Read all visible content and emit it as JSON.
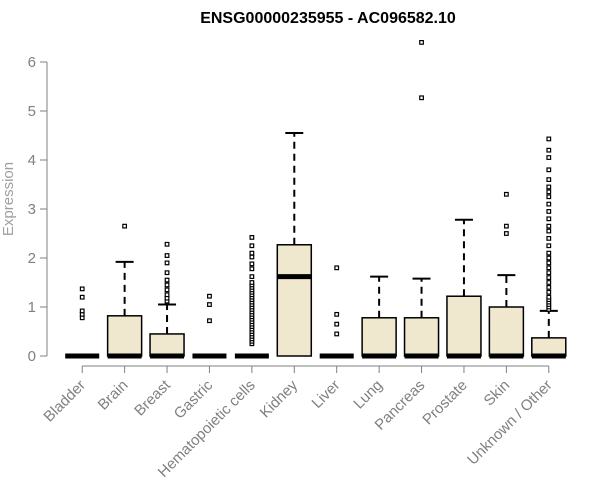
{
  "chart_data": {
    "type": "box",
    "title": "ENSG00000235955 - AC096582.10",
    "ylabel": "Expression",
    "xlabel": "",
    "ylim": [
      0,
      6.6
    ],
    "yticks": [
      0,
      1,
      2,
      3,
      4,
      5,
      6
    ],
    "grid": false,
    "box_fill": "#efe8cf",
    "axis_color": "#808080",
    "categories": [
      "Bladder",
      "Brain",
      "Breast",
      "Gastric",
      "Hematopoietic cells",
      "Kidney",
      "Liver",
      "Lung",
      "Pancreas",
      "Prostate",
      "Skin",
      "Unknown / Other"
    ],
    "boxes": [
      {
        "q1": 0,
        "median": 0,
        "q3": 0,
        "whisker_low": 0,
        "whisker_high": 0,
        "outliers": [
          0.78,
          0.85,
          0.92,
          1.2,
          1.37
        ]
      },
      {
        "q1": 0,
        "median": 0,
        "q3": 0.82,
        "whisker_low": 0,
        "whisker_high": 1.92,
        "outliers": [
          2.65
        ]
      },
      {
        "q1": 0,
        "median": 0,
        "q3": 0.45,
        "whisker_low": 0,
        "whisker_high": 1.05,
        "outliers": [
          1.12,
          1.18,
          1.25,
          1.35,
          1.45,
          1.55,
          1.7,
          1.9,
          2.05,
          2.28
        ]
      },
      {
        "q1": 0,
        "median": 0,
        "q3": 0,
        "whisker_low": 0,
        "whisker_high": 0,
        "outliers": [
          0.72,
          1.05,
          1.22
        ]
      },
      {
        "q1": 0,
        "median": 0,
        "q3": 0,
        "whisker_low": 0,
        "whisker_high": 0,
        "outliers": [
          0.25,
          0.3,
          0.35,
          0.4,
          0.45,
          0.5,
          0.55,
          0.6,
          0.65,
          0.7,
          0.75,
          0.8,
          0.85,
          0.9,
          0.95,
          1.0,
          1.05,
          1.1,
          1.15,
          1.2,
          1.25,
          1.3,
          1.35,
          1.4,
          1.45,
          1.5,
          1.62,
          1.78,
          1.88,
          2.02,
          2.1,
          2.25,
          2.42
        ]
      },
      {
        "q1": 0,
        "median": 1.62,
        "q3": 2.27,
        "whisker_low": 0,
        "whisker_high": 4.55,
        "outliers": []
      },
      {
        "q1": 0,
        "median": 0,
        "q3": 0,
        "whisker_low": 0,
        "whisker_high": 0,
        "outliers": [
          0.45,
          0.65,
          0.85,
          1.8
        ]
      },
      {
        "q1": 0,
        "median": 0,
        "q3": 0.78,
        "whisker_low": 0,
        "whisker_high": 1.62,
        "outliers": []
      },
      {
        "q1": 0,
        "median": 0,
        "q3": 0.78,
        "whisker_low": 0,
        "whisker_high": 1.58,
        "outliers": [
          5.27,
          6.4
        ]
      },
      {
        "q1": 0,
        "median": 0,
        "q3": 1.22,
        "whisker_low": 0,
        "whisker_high": 2.78,
        "outliers": []
      },
      {
        "q1": 0,
        "median": 0,
        "q3": 1.0,
        "whisker_low": 0,
        "whisker_high": 1.65,
        "outliers": [
          2.5,
          2.65,
          3.3
        ]
      },
      {
        "q1": 0,
        "median": 0,
        "q3": 0.37,
        "whisker_low": 0,
        "whisker_high": 0.92,
        "outliers": [
          0.95,
          1.0,
          1.05,
          1.1,
          1.15,
          1.2,
          1.3,
          1.4,
          1.5,
          1.6,
          1.7,
          1.8,
          1.9,
          2.0,
          2.1,
          2.25,
          2.4,
          2.55,
          2.65,
          2.8,
          2.95,
          3.1,
          3.25,
          3.35,
          3.45,
          3.6,
          3.8,
          4.05,
          4.2,
          4.43
        ]
      }
    ]
  }
}
